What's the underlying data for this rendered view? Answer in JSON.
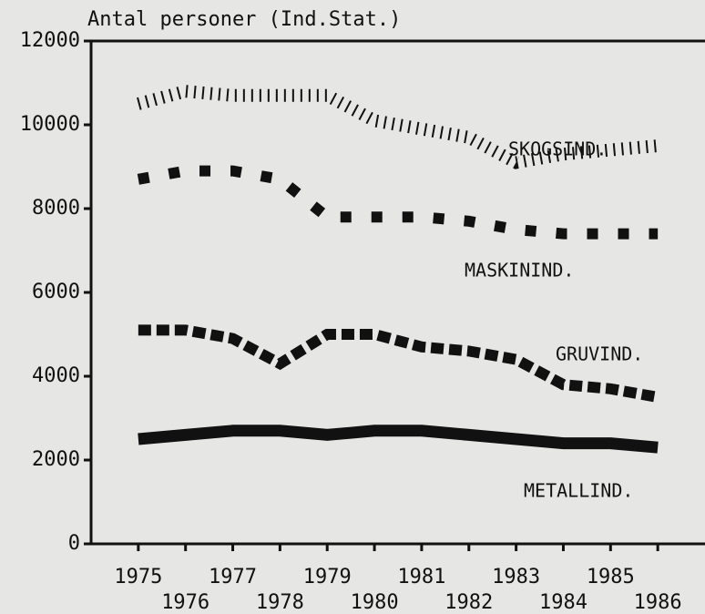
{
  "chart_data": {
    "type": "line",
    "title": "Antal personer (Ind.Stat.)",
    "x": [
      1975,
      1976,
      1977,
      1978,
      1979,
      1980,
      1981,
      1982,
      1983,
      1984,
      1985,
      1986
    ],
    "series": [
      {
        "name": "SKOGSIND.",
        "color": "#111111",
        "values": [
          10500,
          10800,
          10700,
          10700,
          10700,
          10100,
          9900,
          9700,
          9100,
          9300,
          9400,
          9500
        ]
      },
      {
        "name": "MASKININD.",
        "color": "#111111",
        "values": [
          8700,
          8900,
          8900,
          8700,
          7800,
          7800,
          7800,
          7700,
          7500,
          7400,
          7400,
          7400
        ]
      },
      {
        "name": "GRUVIND.",
        "color": "#111111",
        "values": [
          5100,
          5100,
          4900,
          4300,
          5000,
          5000,
          4700,
          4600,
          4400,
          3800,
          3700,
          3500
        ]
      },
      {
        "name": "METALLIND.",
        "color": "#111111",
        "values": [
          2500,
          2600,
          2700,
          2700,
          2600,
          2700,
          2700,
          2600,
          2500,
          2400,
          2400,
          2300
        ]
      }
    ],
    "xlim": [
      1974,
      1987
    ],
    "xticks": [
      1975,
      1976,
      1977,
      1978,
      1979,
      1980,
      1981,
      1982,
      1983,
      1984,
      1985,
      1986
    ],
    "ylim": [
      0,
      12000
    ],
    "yticks": [
      0,
      2000,
      4000,
      6000,
      8000,
      10000,
      12000
    ]
  }
}
